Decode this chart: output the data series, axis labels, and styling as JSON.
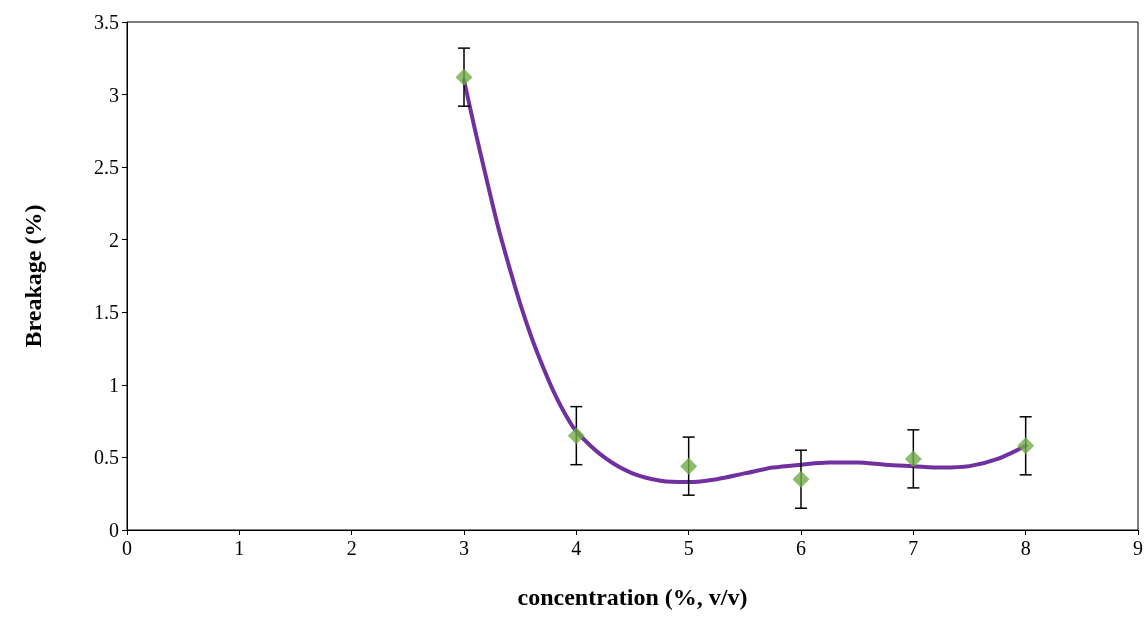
{
  "chart_data": {
    "type": "scatter",
    "xlabel": "concentration (%, v/v)",
    "ylabel": "Breakage (%)",
    "xlim": [
      0,
      9
    ],
    "xticks": [
      0,
      1,
      2,
      3,
      4,
      5,
      6,
      7,
      8,
      9
    ],
    "ylim": [
      0,
      3.5
    ],
    "yticks": [
      0,
      0.5,
      1,
      1.5,
      2,
      2.5,
      3,
      3.5
    ],
    "grid": false,
    "marker": "diamond",
    "series": [
      {
        "color": "#70ad47",
        "x": [
          3,
          4,
          5,
          6,
          7,
          8
        ],
        "values": [
          3.12,
          0.65,
          0.44,
          0.35,
          0.49,
          0.58
        ],
        "errors": [
          0.2,
          0.2,
          0.2,
          0.2,
          0.2,
          0.2
        ]
      },
      {
        "type": "line",
        "color": "#7030a0",
        "marker": "none",
        "line_style": "solid",
        "x": [
          3,
          3.1,
          3.2,
          3.3,
          3.4,
          3.5,
          3.6,
          3.7,
          3.8,
          3.9,
          4,
          4.25,
          4.5,
          4.75,
          5,
          5.25,
          5.5,
          5.75,
          6,
          6.25,
          6.5,
          6.75,
          7,
          7.25,
          7.5,
          7.75,
          8
        ],
        "values": [
          3.1,
          2.75,
          2.42,
          2.1,
          1.82,
          1.56,
          1.33,
          1.13,
          0.95,
          0.8,
          0.68,
          0.5,
          0.39,
          0.34,
          0.33,
          0.35,
          0.39,
          0.43,
          0.45,
          0.465,
          0.465,
          0.45,
          0.44,
          0.43,
          0.44,
          0.49,
          0.58
        ]
      }
    ]
  }
}
